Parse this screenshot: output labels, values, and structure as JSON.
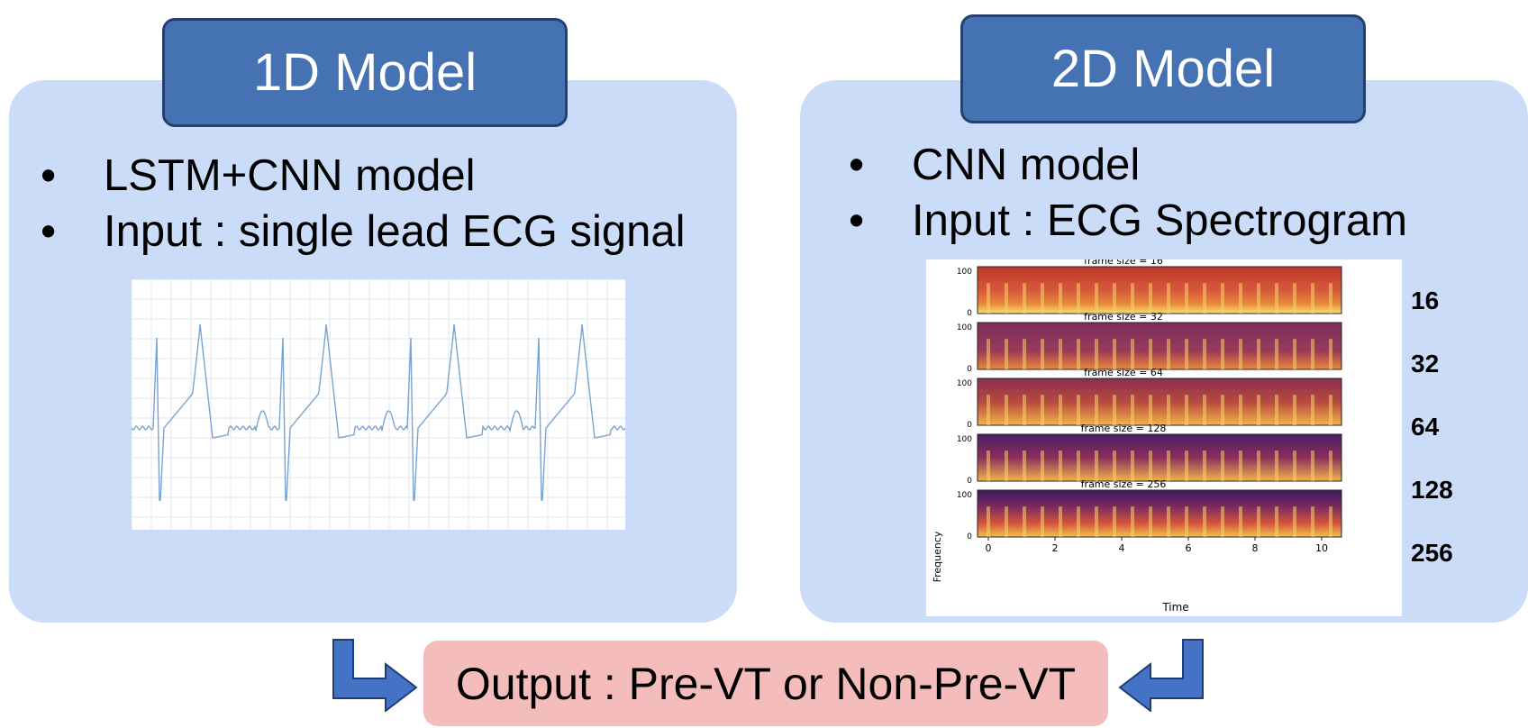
{
  "left": {
    "title": "1D Model",
    "bullets": [
      "LSTM+CNN model",
      "Input : single lead ECG signal"
    ]
  },
  "right": {
    "title": "2D Model",
    "bullets": [
      "CNN model",
      "Input : ECG Spectrogram"
    ],
    "spectrogram": {
      "subplot_titles": [
        "frame size = 16",
        "frame size = 32",
        "frame size = 64",
        "frame size = 128",
        "frame size = 256"
      ],
      "y_ticks": [
        "100",
        "0"
      ],
      "x_ticks": [
        "0",
        "2",
        "4",
        "6",
        "8",
        "10"
      ],
      "xlabel": "Time",
      "ylabel": "Frequency"
    },
    "frame_labels": [
      "16",
      "32",
      "64",
      "128",
      "256"
    ]
  },
  "output": "Output : Pre-VT or Non-Pre-VT",
  "colors": {
    "panel": "#cbdcf8",
    "title_box": "#4472b2",
    "output_box": "#f5bcbc",
    "arrow": "#4472c4"
  }
}
